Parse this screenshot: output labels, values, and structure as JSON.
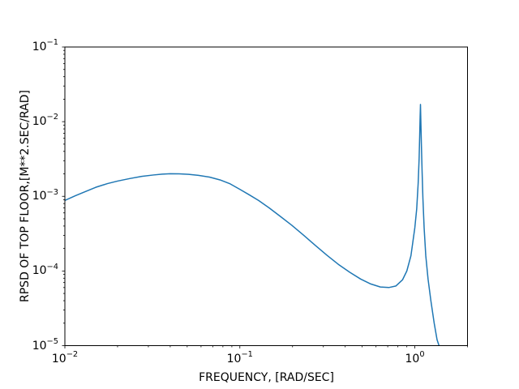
{
  "figure": {
    "background": "#ffffff",
    "axes_color": "#000000"
  },
  "chart_data": {
    "type": "line",
    "title": "",
    "xlabel": "FREQUENCY, [RAD/SEC]",
    "ylabel": "RPSD OF TOP FLOOR,[M**2.SEC/RAD]",
    "xscale": "log",
    "yscale": "log",
    "xlim": [
      0.01,
      2.0
    ],
    "ylim": [
      1e-05,
      0.1
    ],
    "grid": false,
    "legend": null,
    "line_color": "#1f77b4",
    "line_width": 1.5,
    "x_ticks": [
      {
        "value": 0.01,
        "base": "10",
        "exp": "−2"
      },
      {
        "value": 0.1,
        "base": "10",
        "exp": "−1"
      },
      {
        "value": 1.0,
        "base": "10",
        "exp": "0"
      }
    ],
    "y_ticks": [
      {
        "value": 0.1,
        "base": "10",
        "exp": "−1"
      },
      {
        "value": 0.01,
        "base": "10",
        "exp": "−2"
      },
      {
        "value": 0.001,
        "base": "10",
        "exp": "−3"
      },
      {
        "value": 0.0001,
        "base": "10",
        "exp": "−4"
      },
      {
        "value": 1e-05,
        "base": "10",
        "exp": "−5"
      }
    ],
    "series": [
      {
        "name": "rpsd-of-top-floor",
        "x": [
          0.01,
          0.0115,
          0.013,
          0.015,
          0.0175,
          0.02,
          0.0235,
          0.0275,
          0.032,
          0.036,
          0.04,
          0.045,
          0.051,
          0.058,
          0.067,
          0.077,
          0.088,
          0.1,
          0.113,
          0.128,
          0.147,
          0.17,
          0.198,
          0.232,
          0.27,
          0.315,
          0.365,
          0.425,
          0.49,
          0.56,
          0.635,
          0.71,
          0.78,
          0.85,
          0.9,
          0.95,
          1.0,
          1.025,
          1.045,
          1.058,
          1.066,
          1.072,
          1.077,
          1.082,
          1.09,
          1.1,
          1.112,
          1.13,
          1.155,
          1.19,
          1.235,
          1.29,
          1.34,
          1.375
        ],
        "y": [
          0.00088,
          0.00102,
          0.00115,
          0.00132,
          0.00148,
          0.0016,
          0.00173,
          0.00185,
          0.00193,
          0.00198,
          0.00201,
          0.002,
          0.00197,
          0.00191,
          0.00181,
          0.00166,
          0.00147,
          0.00124,
          0.00105,
          0.00088,
          0.0007,
          0.00054,
          0.00041,
          0.0003,
          0.00022,
          0.000162,
          0.000123,
          9.6e-05,
          7.8e-05,
          6.7e-05,
          6.1e-05,
          6e-05,
          6.3e-05,
          7.6e-05,
          0.0001,
          0.00016,
          0.00038,
          0.00068,
          0.0015,
          0.0032,
          0.0065,
          0.0115,
          0.017,
          0.0105,
          0.005,
          0.0022,
          0.00095,
          0.00038,
          0.00016,
          7.8e-05,
          4e-05,
          2e-05,
          1.2e-05,
          1e-05
        ]
      }
    ]
  }
}
